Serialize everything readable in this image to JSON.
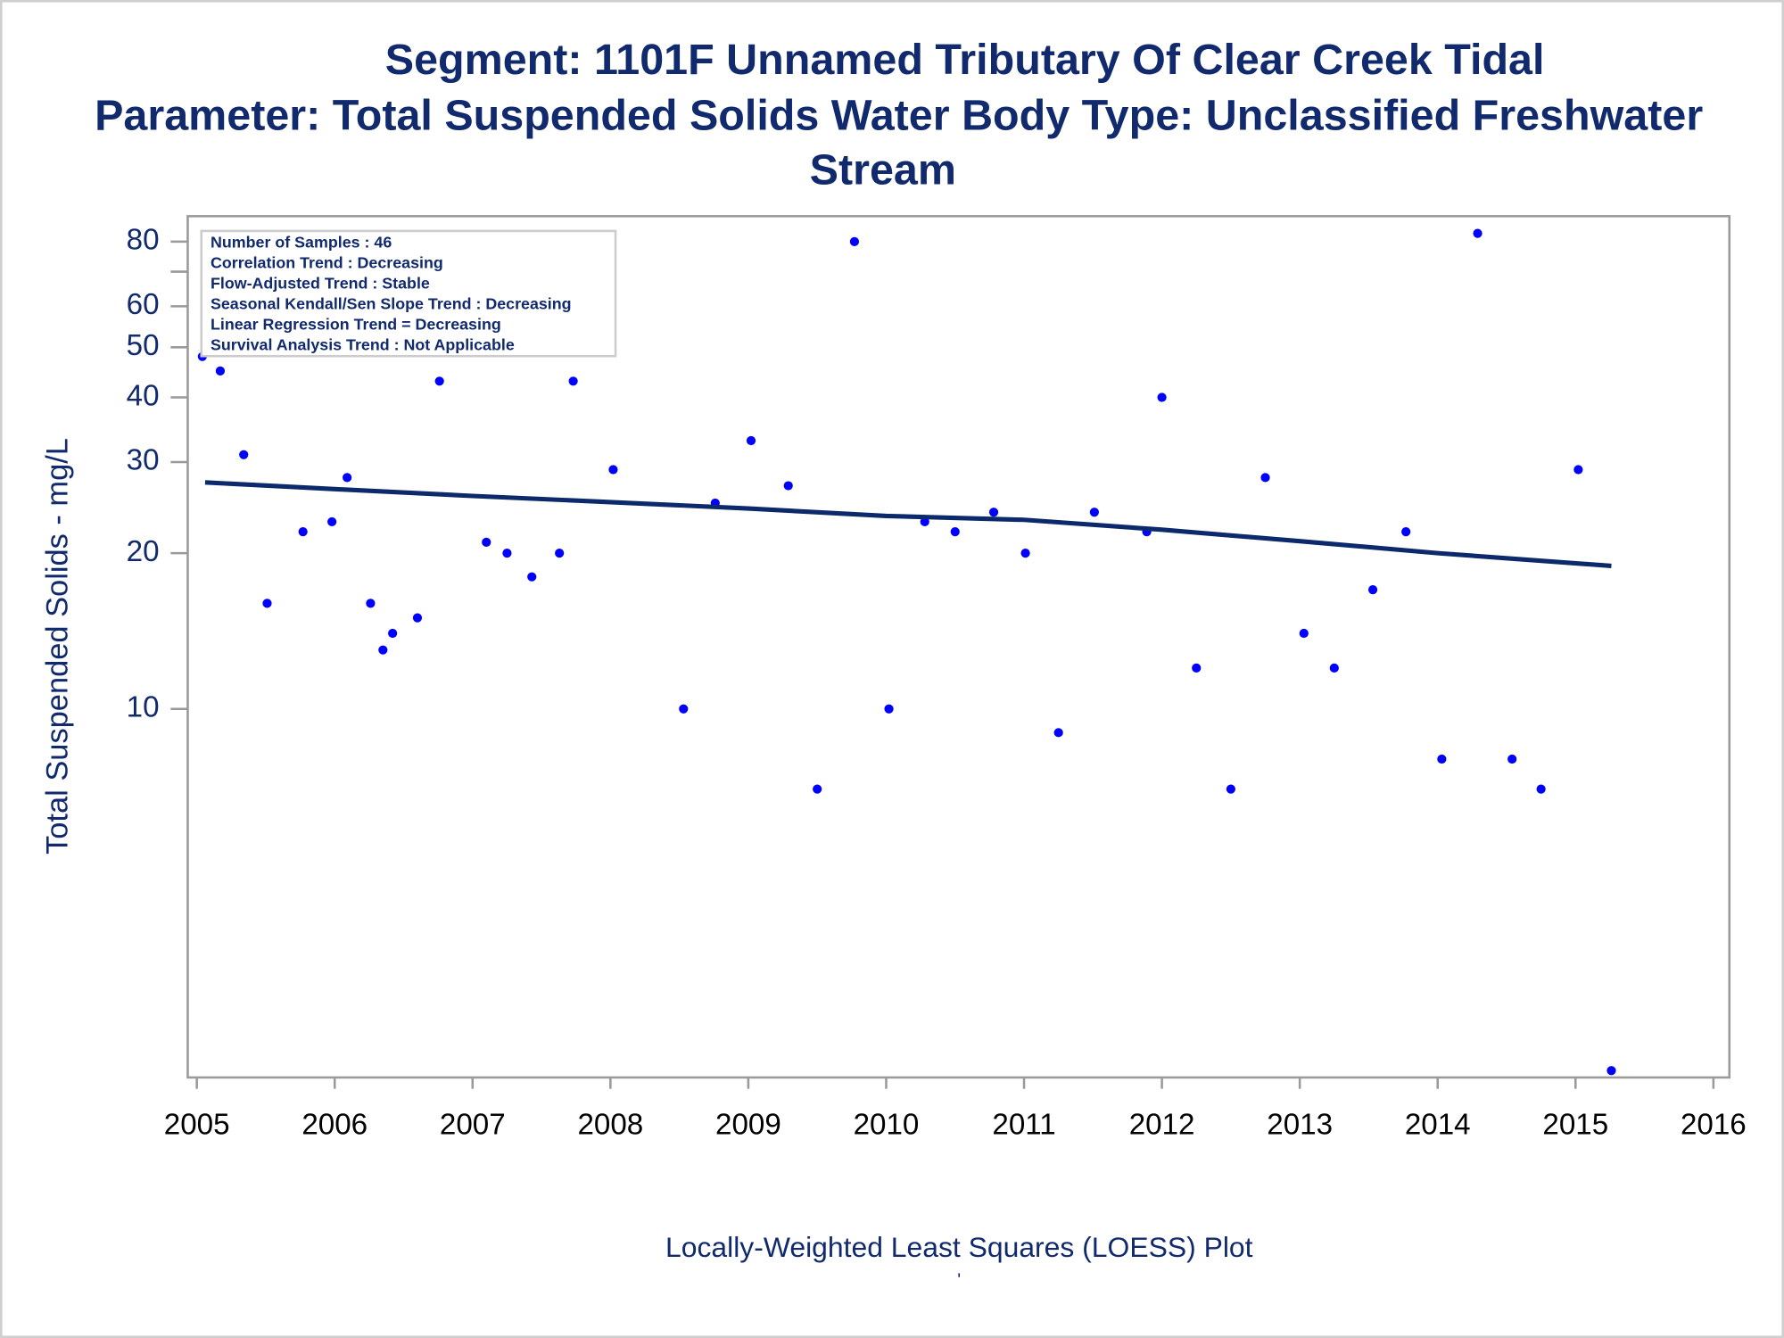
{
  "chart_data": {
    "type": "scatter",
    "title": "Segment: 1101F  Unnamed Tributary Of Clear Creek Tidal",
    "subtitle_lines": [
      "Parameter: Total Suspended Solids   Water Body Type: Unclassified Freshwater",
      "Stream"
    ],
    "stats_box": [
      "Number of Samples : 46",
      "Correlation Trend : Decreasing",
      "Flow-Adjusted Trend : Stable",
      "Seasonal Kendall/Sen Slope Trend : Decreasing",
      "Linear Regression Trend = Decreasing",
      "Survival Analysis Trend : Not Applicable"
    ],
    "y_label": "Total Suspended Solids - mg/L",
    "x_label": "Locally-Weighted Least Squares (LOESS) Plot",
    "footnote": "'",
    "y_scale": "log",
    "xlim": [
      2004.934,
      2016.116
    ],
    "xticks": [
      2005,
      2006,
      2007,
      2008,
      2009,
      2010,
      2011,
      2012,
      2013,
      2014,
      2015,
      2016
    ],
    "ylim": [
      1.94,
      89.6
    ],
    "yticks": [
      10,
      20,
      30,
      40,
      50,
      60,
      80
    ],
    "minor_yticks": [
      70
    ],
    "series": [
      {
        "mode": "markers",
        "color": "#0000ff",
        "x": [
          2005.04,
          2005.17,
          2005.34,
          2005.51,
          2005.77,
          2005.98,
          2006.09,
          2006.26,
          2006.35,
          2006.42,
          2006.6,
          2006.76,
          2007.1,
          2007.25,
          2007.43,
          2007.63,
          2007.73,
          2008.02,
          2008.53,
          2008.76,
          2009.02,
          2009.29,
          2009.5,
          2009.77,
          2010.02,
          2010.28,
          2010.5,
          2010.78,
          2011.01,
          2011.25,
          2011.51,
          2011.89,
          2012.0,
          2012.25,
          2012.5,
          2012.75,
          2013.03,
          2013.25,
          2013.53,
          2013.77,
          2014.03,
          2014.29,
          2014.54,
          2014.75,
          2015.02,
          2015.26
        ],
        "values": [
          48,
          45,
          31,
          16,
          22,
          23,
          28,
          16,
          13,
          14,
          15,
          43,
          21,
          20,
          18,
          20,
          43,
          29,
          10,
          25,
          33,
          27,
          7,
          80,
          10,
          23,
          22,
          24,
          20,
          9,
          24,
          22,
          40,
          12,
          7,
          28,
          14,
          12,
          17,
          22,
          8,
          83,
          8,
          7,
          29,
          2
        ]
      },
      {
        "mode": "line",
        "color": "#0c2a6b",
        "x": [
          2005.06,
          2006,
          2007,
          2008,
          2009,
          2010,
          2011,
          2012,
          2013,
          2014,
          2015.26
        ],
        "values": [
          27.4,
          26.6,
          25.8,
          25.1,
          24.4,
          23.6,
          23.2,
          22.2,
          21.1,
          20,
          18.9
        ]
      }
    ]
  }
}
